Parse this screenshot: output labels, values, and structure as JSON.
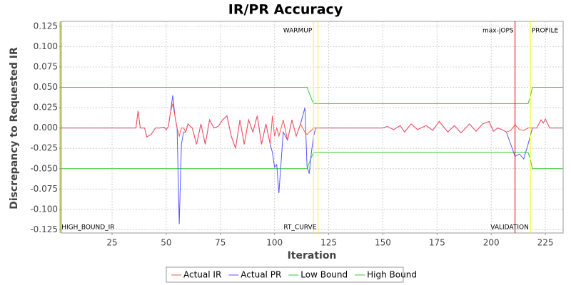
{
  "chart_data": {
    "type": "line",
    "title": "IR/PR Accuracy",
    "x_label": "Iteration",
    "y_label": "Discrepancy to Requested IR",
    "xlim": [
      1.6,
      233.2
    ],
    "ylim": [
      -0.129,
      0.131
    ],
    "xticks": [
      25,
      50,
      75,
      100,
      125,
      150,
      175,
      200,
      225
    ],
    "yticks": [
      0.125,
      {
        "value": 0.1,
        "label": "0.100"
      },
      0.075,
      {
        "value": 0.05,
        "label": "0.050"
      },
      0.025,
      {
        "value": 0,
        "label": "0.000"
      },
      -0.025,
      {
        "value": -0.05,
        "label": "-0.050"
      },
      -0.075,
      {
        "value": -0.1,
        "label": "-0.100"
      },
      -0.125
    ],
    "grid": true,
    "legend": "bottom",
    "x": [
      1,
      36,
      37,
      38,
      40,
      41,
      43,
      45,
      47,
      49,
      50,
      51,
      52,
      53,
      54,
      55,
      56,
      57,
      58,
      59,
      60,
      62,
      64,
      66,
      68,
      70,
      72,
      74,
      76,
      78,
      80,
      82,
      84,
      86,
      88,
      90,
      92,
      94,
      96,
      98,
      99,
      100,
      101,
      102,
      104,
      106,
      108,
      110,
      112,
      114,
      115,
      116,
      117,
      118,
      119,
      120,
      150,
      152,
      155,
      158,
      160,
      163,
      166,
      170,
      173,
      176,
      180,
      183,
      186,
      190,
      193,
      196,
      199,
      201,
      203,
      205,
      207,
      209,
      211,
      213,
      215,
      217,
      218,
      219,
      221,
      223,
      224,
      225,
      227,
      229,
      233
    ],
    "series": [
      {
        "name": "Actual IR",
        "color": "#ff5555",
        "values": [
          0,
          0,
          0.021,
          0,
          0,
          -0.011,
          -0.008,
          0,
          0,
          0.001,
          -0.002,
          0.002,
          0.02,
          0.03,
          0.015,
          0,
          -0.01,
          0,
          0,
          -0.005,
          0.005,
          0,
          -0.02,
          0.005,
          -0.02,
          0.01,
          0,
          0.002,
          0.01,
          0.015,
          -0.01,
          -0.025,
          0.01,
          -0.02,
          0.01,
          -0.005,
          0.015,
          -0.02,
          0.005,
          -0.02,
          0.015,
          -0.01,
          0,
          -0.01,
          0.01,
          -0.015,
          0.01,
          -0.01,
          0.005,
          -0.005,
          -0.008,
          -0.005,
          -0.003,
          0,
          0,
          0,
          0,
          0.002,
          -0.002,
          0.003,
          -0.005,
          0.005,
          -0.002,
          0.003,
          -0.003,
          0.008,
          -0.005,
          0.003,
          -0.006,
          0.005,
          -0.004,
          0.005,
          0.008,
          -0.004,
          0,
          -0.002,
          -0.005,
          -0.003,
          0.004,
          -0.002,
          -0.003,
          0,
          0,
          0,
          0,
          0.01,
          0.006,
          0.011,
          0,
          0,
          0
        ]
      },
      {
        "name": "Actual PR",
        "color": "#5555ff",
        "values": [
          0,
          0,
          0.021,
          0,
          0,
          -0.011,
          -0.008,
          0,
          0,
          0.001,
          -0.002,
          0.002,
          0.02,
          0.04,
          0.015,
          0,
          -0.118,
          -0.02,
          -0.005,
          -0.005,
          0.005,
          0,
          -0.02,
          0.005,
          -0.02,
          0.01,
          0,
          0.002,
          0.01,
          0.015,
          -0.01,
          -0.025,
          0.01,
          -0.02,
          0.01,
          -0.005,
          0.015,
          -0.02,
          0.005,
          -0.02,
          -0.03,
          -0.048,
          -0.045,
          -0.08,
          -0.005,
          -0.015,
          0.01,
          -0.01,
          0.005,
          0.025,
          -0.048,
          -0.056,
          -0.03,
          -0.01,
          0,
          0,
          0,
          0.002,
          -0.002,
          0.003,
          -0.005,
          0.005,
          -0.002,
          0.003,
          -0.003,
          0.008,
          -0.005,
          0.003,
          -0.006,
          0.005,
          -0.004,
          0.005,
          0.008,
          -0.004,
          0,
          -0.002,
          -0.005,
          -0.02,
          -0.035,
          -0.032,
          -0.038,
          -0.02,
          -0.01,
          0,
          0,
          0.01,
          0.006,
          0.011,
          0,
          0,
          0
        ]
      },
      {
        "name": "Low Bound",
        "color": "#33cc33",
        "values": [
          -0.05,
          -0.05,
          -0.05,
          -0.05,
          -0.05,
          -0.05,
          -0.05,
          -0.05,
          -0.05,
          -0.05,
          -0.05,
          -0.05,
          -0.05,
          -0.05,
          -0.05,
          -0.05,
          -0.05,
          -0.05,
          -0.05,
          -0.05,
          -0.05,
          -0.05,
          -0.05,
          -0.05,
          -0.05,
          -0.05,
          -0.05,
          -0.05,
          -0.05,
          -0.05,
          -0.05,
          -0.05,
          -0.05,
          -0.05,
          -0.05,
          -0.05,
          -0.05,
          -0.05,
          -0.05,
          -0.05,
          -0.05,
          -0.05,
          -0.05,
          -0.05,
          -0.05,
          -0.05,
          -0.05,
          -0.05,
          -0.05,
          -0.05,
          -0.05,
          -0.043,
          -0.036,
          -0.03,
          -0.03,
          -0.03,
          -0.03,
          -0.03,
          -0.03,
          -0.03,
          -0.03,
          -0.03,
          -0.03,
          -0.03,
          -0.03,
          -0.03,
          -0.03,
          -0.03,
          -0.03,
          -0.03,
          -0.03,
          -0.03,
          -0.03,
          -0.03,
          -0.03,
          -0.03,
          -0.03,
          -0.03,
          -0.03,
          -0.03,
          -0.03,
          -0.03,
          -0.038,
          -0.05,
          -0.05,
          -0.05,
          -0.05,
          -0.05,
          -0.05,
          -0.05,
          -0.05
        ]
      },
      {
        "name": "High Bound",
        "color": "#33cc33",
        "values": [
          0.05,
          0.05,
          0.05,
          0.05,
          0.05,
          0.05,
          0.05,
          0.05,
          0.05,
          0.05,
          0.05,
          0.05,
          0.05,
          0.05,
          0.05,
          0.05,
          0.05,
          0.05,
          0.05,
          0.05,
          0.05,
          0.05,
          0.05,
          0.05,
          0.05,
          0.05,
          0.05,
          0.05,
          0.05,
          0.05,
          0.05,
          0.05,
          0.05,
          0.05,
          0.05,
          0.05,
          0.05,
          0.05,
          0.05,
          0.05,
          0.05,
          0.05,
          0.05,
          0.05,
          0.05,
          0.05,
          0.05,
          0.05,
          0.05,
          0.05,
          0.05,
          0.043,
          0.036,
          0.03,
          0.03,
          0.03,
          0.03,
          0.03,
          0.03,
          0.03,
          0.03,
          0.03,
          0.03,
          0.03,
          0.03,
          0.03,
          0.03,
          0.03,
          0.03,
          0.03,
          0.03,
          0.03,
          0.03,
          0.03,
          0.03,
          0.03,
          0.03,
          0.03,
          0.03,
          0.03,
          0.03,
          0.03,
          0.038,
          0.05,
          0.05,
          0.05,
          0.05,
          0.05,
          0.05,
          0.05,
          0.05
        ]
      }
    ],
    "markers": [
      {
        "x": 1,
        "label": "HIGH_BOUND_IR",
        "color": "#999900"
      },
      {
        "x": 118,
        "label": "WARMUP",
        "color": "#ffff00"
      },
      {
        "x": 120,
        "label": "RT_CURVE",
        "color": "#ffff00"
      },
      {
        "x": 211,
        "label": "max-jOPS",
        "color": "#dd0000"
      },
      {
        "x": 218,
        "label": "VALIDATION",
        "color": "#ffff00"
      },
      {
        "x": 218,
        "label": "PROFILE",
        "color": "#ffff00"
      }
    ]
  }
}
